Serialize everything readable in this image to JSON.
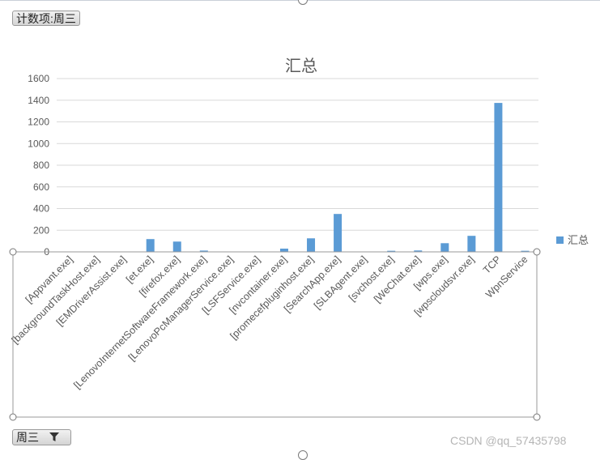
{
  "field_buttons": {
    "value_field": "计数项:周三",
    "axis_field": "周三"
  },
  "watermark": "CSDN @qq_57435798",
  "colors": {
    "bar": "#5b9bd5",
    "grid": "#d9d9d9",
    "axis": "#bfbfbf",
    "text": "#595959"
  },
  "icons": {
    "filter": "filter-icon"
  },
  "chart_data": {
    "type": "bar",
    "title": "汇总",
    "xlabel": "",
    "ylabel": "",
    "ylim": [
      0,
      1600
    ],
    "yticks": [
      0,
      200,
      400,
      600,
      800,
      1000,
      1200,
      1400,
      1600
    ],
    "grid": true,
    "legend_position": "right",
    "categories": [
      "[Appvant.exe]",
      "[backgroundTaskHost.exe]",
      "[EMDriverAssist.exe]",
      "[et.exe]",
      "[firefox.exe]",
      "[LenovoInternetSoftwareFramework.exe]",
      "[LenovoPcManagerService.exe]",
      "[LSFService.exe]",
      "[nvcontainer.exe]",
      "[promecefpluginhost.exe]",
      "[SearchApp.exe]",
      "[SLBAgent.exe]",
      "[svchost.exe]",
      "[WeChat.exe]",
      "[wps.exe]",
      "[wpscloudsvr.exe]",
      "TCP",
      "WpnService"
    ],
    "series": [
      {
        "name": "汇总",
        "values": [
          3,
          2,
          2,
          118,
          95,
          12,
          3,
          4,
          30,
          125,
          350,
          2,
          10,
          13,
          80,
          148,
          1375,
          10
        ]
      }
    ]
  }
}
